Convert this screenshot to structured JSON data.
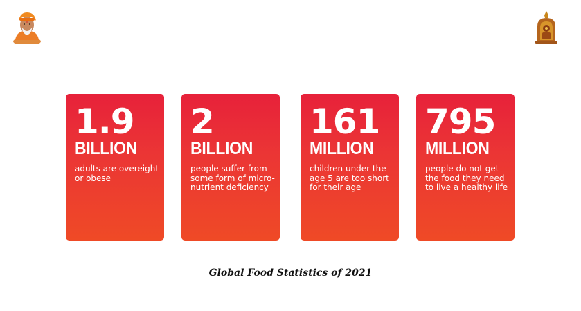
{
  "cards": [
    {
      "number": "1.9",
      "unit": "BILLION",
      "description": "adults are overeight or obese"
    },
    {
      "number": "2",
      "unit": "BILLION",
      "description": "people suffer from some form of micro-nutrient deficiency"
    },
    {
      "number": "161",
      "unit": "MILLION",
      "description": "children under the age 5 are too short for their age"
    },
    {
      "number": "795",
      "unit": "MILLION",
      "description": "people do not get the food they need to live a healthy life"
    }
  ],
  "caption": "Global Food Statistics of 2021",
  "logos": {
    "left": "guru-portrait-icon",
    "right": "temple-emblem-icon"
  },
  "colors": {
    "card_top": "#e7213a",
    "card_bottom": "#ef4a26"
  }
}
